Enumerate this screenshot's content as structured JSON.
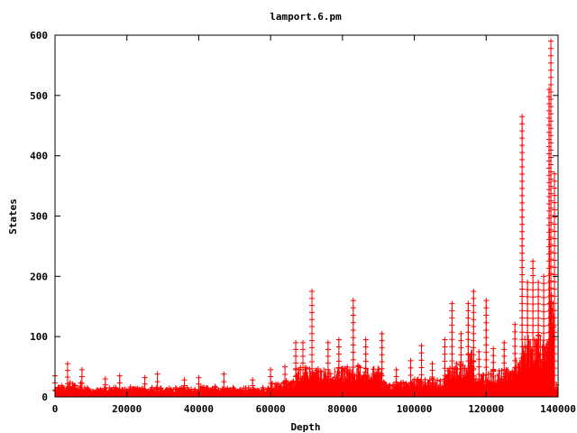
{
  "chart_data": {
    "type": "scatter",
    "title": "lamport.6.pm",
    "xlabel": "Depth",
    "ylabel": "States",
    "xlim": [
      0,
      140000
    ],
    "ylim": [
      0,
      600
    ],
    "xticks": [
      "0",
      "20000",
      "40000",
      "60000",
      "80000",
      "100000",
      "120000",
      "140000"
    ],
    "yticks": [
      "0",
      "100",
      "200",
      "300",
      "400",
      "500",
      "600"
    ],
    "grid": false,
    "legend": "none",
    "marker": "+",
    "color": "#ff0000",
    "peaks": [
      {
        "x": 0,
        "y": 35
      },
      {
        "x": 3500,
        "y": 55
      },
      {
        "x": 7500,
        "y": 45
      },
      {
        "x": 14000,
        "y": 30
      },
      {
        "x": 18000,
        "y": 35
      },
      {
        "x": 25000,
        "y": 32
      },
      {
        "x": 28500,
        "y": 38
      },
      {
        "x": 36000,
        "y": 28
      },
      {
        "x": 40000,
        "y": 32
      },
      {
        "x": 47000,
        "y": 38
      },
      {
        "x": 55000,
        "y": 28
      },
      {
        "x": 60000,
        "y": 45
      },
      {
        "x": 64000,
        "y": 50
      },
      {
        "x": 67000,
        "y": 90
      },
      {
        "x": 69000,
        "y": 90
      },
      {
        "x": 71500,
        "y": 175
      },
      {
        "x": 76000,
        "y": 90
      },
      {
        "x": 79000,
        "y": 95
      },
      {
        "x": 83000,
        "y": 160
      },
      {
        "x": 86500,
        "y": 95
      },
      {
        "x": 91000,
        "y": 105
      },
      {
        "x": 95000,
        "y": 45
      },
      {
        "x": 99000,
        "y": 60
      },
      {
        "x": 102000,
        "y": 85
      },
      {
        "x": 105000,
        "y": 55
      },
      {
        "x": 108500,
        "y": 95
      },
      {
        "x": 110500,
        "y": 155
      },
      {
        "x": 113000,
        "y": 105
      },
      {
        "x": 115000,
        "y": 155
      },
      {
        "x": 116500,
        "y": 175
      },
      {
        "x": 118000,
        "y": 75
      },
      {
        "x": 120000,
        "y": 160
      },
      {
        "x": 122000,
        "y": 80
      },
      {
        "x": 125000,
        "y": 90
      },
      {
        "x": 128000,
        "y": 120
      },
      {
        "x": 130000,
        "y": 465
      },
      {
        "x": 131500,
        "y": 190
      },
      {
        "x": 133000,
        "y": 225
      },
      {
        "x": 134500,
        "y": 190
      },
      {
        "x": 136000,
        "y": 200
      },
      {
        "x": 137500,
        "y": 510
      },
      {
        "x": 138000,
        "y": 590
      },
      {
        "x": 139000,
        "y": 370
      }
    ]
  }
}
